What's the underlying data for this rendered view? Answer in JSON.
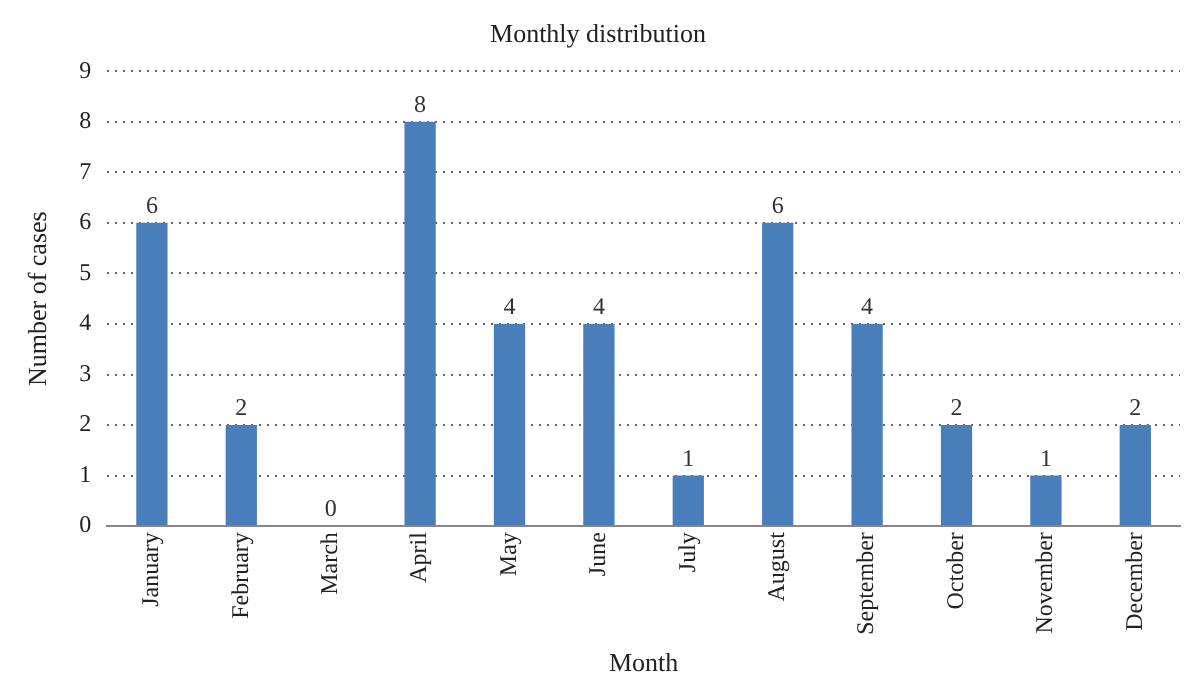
{
  "chart_data": {
    "type": "bar",
    "title": "Monthly distribution",
    "xlabel": "Month",
    "ylabel": "Number of cases",
    "categories": [
      "January",
      "February",
      "March",
      "April",
      "May",
      "June",
      "July",
      "August",
      "September",
      "October",
      "November",
      "December"
    ],
    "values": [
      6,
      2,
      0,
      8,
      4,
      4,
      1,
      6,
      4,
      2,
      1,
      2
    ],
    "color": "#4a7ebb",
    "ylim": [
      0,
      9
    ],
    "yticks": [
      0,
      1,
      2,
      3,
      4,
      5,
      6,
      7,
      8,
      9
    ],
    "grid": "y",
    "data_labels": true
  }
}
